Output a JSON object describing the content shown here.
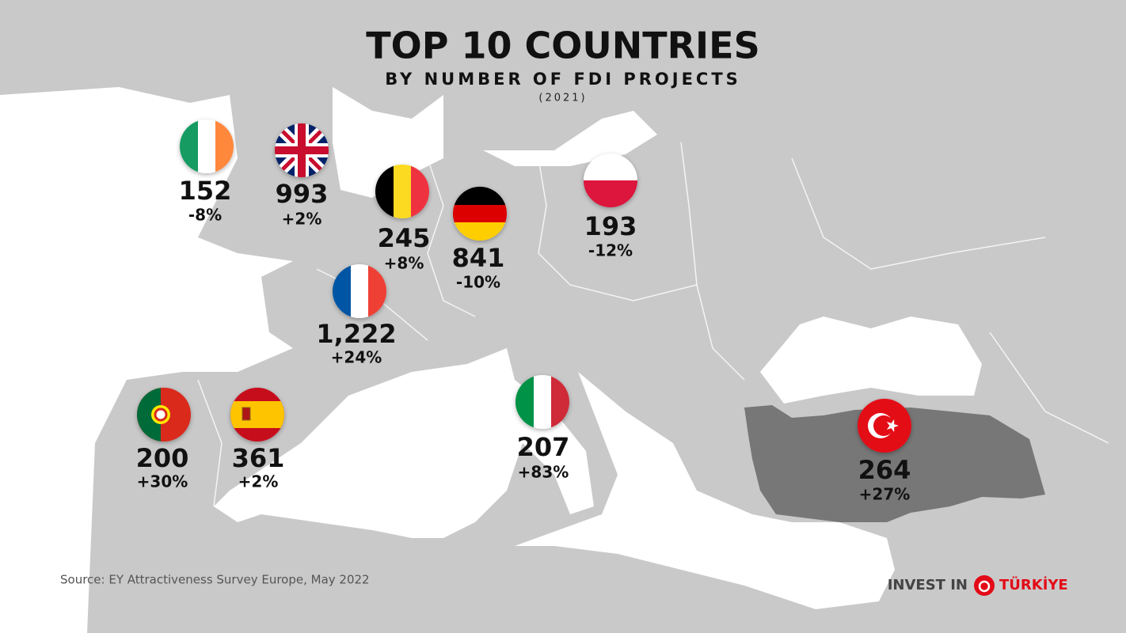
{
  "header": {
    "title": "TOP 10 COUNTRIES",
    "subtitle": "BY NUMBER OF FDI PROJECTS",
    "year": "(2021)"
  },
  "countries": [
    {
      "value": "152",
      "change": "-8%"
    },
    {
      "value": "993",
      "change": "+2%"
    },
    {
      "value": "245",
      "change": "+8%"
    },
    {
      "value": "841",
      "change": "-10%"
    },
    {
      "value": "193",
      "change": "-12%"
    },
    {
      "value": "1,222",
      "change": "+24%"
    },
    {
      "value": "200",
      "change": "+30%"
    },
    {
      "value": "361",
      "change": "+2%"
    },
    {
      "value": "207",
      "change": "+83%"
    },
    {
      "value": "264",
      "change": "+27%"
    }
  ],
  "source": "Source: EY Attractiveness Survey Europe, May 2022",
  "logo": {
    "left": "INVEST IN",
    "right": "TÜRKİYE"
  }
}
